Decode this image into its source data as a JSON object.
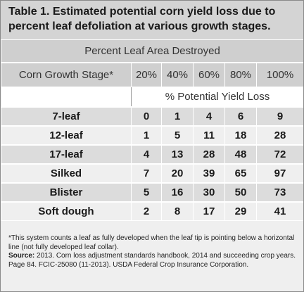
{
  "title": {
    "line1": "Table 1. Estimated potential corn yield loss due to",
    "line2": "percent leaf defoliation at various growth stages."
  },
  "table": {
    "banner": "Percent Leaf Area Destroyed",
    "stage_header": "Corn Growth Stage*",
    "percent_headers": [
      "20%",
      "40%",
      "60%",
      "80%",
      "100%"
    ],
    "subheader": "% Potential Yield Loss",
    "rows": [
      {
        "stage": "7-leaf",
        "values": [
          "0",
          "1",
          "4",
          "6",
          "9"
        ]
      },
      {
        "stage": "12-leaf",
        "values": [
          "1",
          "5",
          "11",
          "18",
          "28"
        ]
      },
      {
        "stage": "17-leaf",
        "values": [
          "4",
          "13",
          "28",
          "48",
          "72"
        ]
      },
      {
        "stage": "Silked",
        "values": [
          "7",
          "20",
          "39",
          "65",
          "97"
        ]
      },
      {
        "stage": "Blister",
        "values": [
          "5",
          "16",
          "30",
          "50",
          "73"
        ]
      },
      {
        "stage": "Soft dough",
        "values": [
          "2",
          "8",
          "17",
          "29",
          "41"
        ]
      }
    ]
  },
  "footnote": "*This system counts a leaf as fully developed when the leaf tip is pointing below a horizontal line (not fully developed leaf collar).",
  "source_label": "Source:",
  "source_text": " 2013. Corn loss adjustment standards handbook, 2014 and succeeding crop years. Page 84. FCIC-25080 (11-2013). USDA Federal Crop Insurance Corporation.",
  "colors": {
    "title_bg": "#d4d4d4",
    "header_bg": "#cfcfcf",
    "row_shade": "#dcdcdc",
    "row_light": "#efefef"
  }
}
